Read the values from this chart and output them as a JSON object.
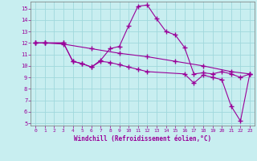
{
  "xlabel": "Windchill (Refroidissement éolien,°C)",
  "background_color": "#c8eef0",
  "line_color": "#990099",
  "grid_color": "#a0d8dc",
  "xlim": [
    -0.5,
    23.5
  ],
  "ylim": [
    4.8,
    15.6
  ],
  "yticks": [
    5,
    6,
    7,
    8,
    9,
    10,
    11,
    12,
    13,
    14,
    15
  ],
  "xticks": [
    0,
    1,
    2,
    3,
    4,
    5,
    6,
    7,
    8,
    9,
    10,
    11,
    12,
    13,
    14,
    15,
    16,
    17,
    18,
    19,
    20,
    21,
    22,
    23
  ],
  "line1_x": [
    0,
    1,
    3,
    4,
    5,
    6,
    7,
    8,
    9,
    10,
    11,
    12,
    13,
    14,
    15,
    16,
    17,
    18,
    19,
    20,
    21,
    22,
    23
  ],
  "line1_y": [
    12,
    12,
    12,
    10.4,
    10.2,
    9.9,
    10.5,
    11.5,
    11.7,
    13.5,
    15.2,
    15.3,
    14.1,
    13.0,
    12.7,
    11.6,
    9.3,
    9.4,
    9.3,
    9.5,
    9.3,
    9.0,
    9.3
  ],
  "line2_x": [
    0,
    1,
    3,
    4,
    5,
    6,
    7,
    8,
    9,
    10,
    11,
    12,
    16,
    17,
    18,
    19,
    20,
    21,
    22,
    23
  ],
  "line2_y": [
    12,
    12,
    12,
    10.4,
    10.2,
    9.9,
    10.4,
    10.3,
    10.1,
    9.9,
    9.7,
    9.5,
    9.3,
    8.5,
    9.2,
    9.0,
    8.8,
    6.5,
    5.2,
    9.3
  ],
  "line3_x": [
    0,
    1,
    3,
    6,
    9,
    12,
    15,
    18,
    21,
    23
  ],
  "line3_y": [
    12,
    12,
    11.9,
    11.5,
    11.1,
    10.8,
    10.4,
    10.0,
    9.5,
    9.3
  ]
}
